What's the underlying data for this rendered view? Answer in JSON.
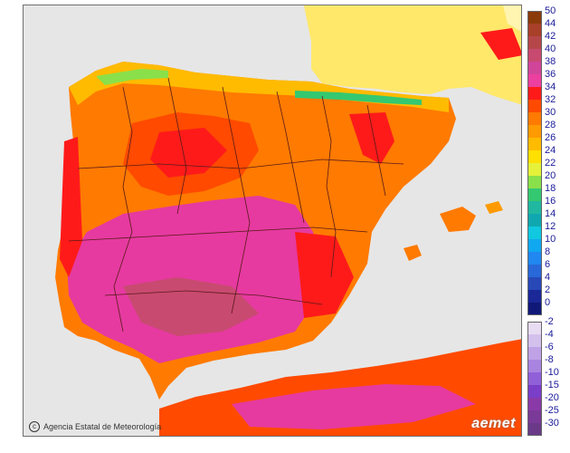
{
  "credit": {
    "text": "Agencia Estatal de Meteorología"
  },
  "brand": {
    "text": "aemet"
  },
  "legend_warm": [
    {
      "label": "50",
      "color": "#8b3a0a"
    },
    {
      "label": "44",
      "color": "#a8402a"
    },
    {
      "label": "42",
      "color": "#b5474a"
    },
    {
      "label": "40",
      "color": "#c84a70"
    },
    {
      "label": "38",
      "color": "#d0459a"
    },
    {
      "label": "36",
      "color": "#ec3fa0"
    },
    {
      "label": "34",
      "color": "#ff1a1a"
    },
    {
      "label": "32",
      "color": "#ff4a00"
    },
    {
      "label": "30",
      "color": "#ff7a00"
    },
    {
      "label": "28",
      "color": "#ff9a00"
    },
    {
      "label": "26",
      "color": "#ffbb00"
    },
    {
      "label": "24",
      "color": "#ffe000"
    },
    {
      "label": "22",
      "color": "#e6f23a"
    },
    {
      "label": "20",
      "color": "#8ae04a"
    },
    {
      "label": "18",
      "color": "#34c870"
    },
    {
      "label": "16",
      "color": "#20b8a0"
    },
    {
      "label": "14",
      "color": "#10a8b0"
    },
    {
      "label": "12",
      "color": "#10c8e0"
    },
    {
      "label": "10",
      "color": "#10a8f0"
    },
    {
      "label": "8",
      "color": "#2088f0"
    },
    {
      "label": "6",
      "color": "#2868d8"
    },
    {
      "label": "4",
      "color": "#2848b8"
    },
    {
      "label": "2",
      "color": "#1a2898"
    },
    {
      "label": "0",
      "color": "#101878"
    }
  ],
  "legend_cold": [
    {
      "label": "-2",
      "color": "#e8dcf2"
    },
    {
      "label": "-4",
      "color": "#d4c0ec"
    },
    {
      "label": "-6",
      "color": "#bfa2e6"
    },
    {
      "label": "-8",
      "color": "#a884e0"
    },
    {
      "label": "-10",
      "color": "#9060d8"
    },
    {
      "label": "-15",
      "color": "#7a3ec8"
    },
    {
      "label": "-20",
      "color": "#8a3aa8"
    },
    {
      "label": "-25",
      "color": "#7a3a98"
    },
    {
      "label": "-30",
      "color": "#6a3a88"
    }
  ],
  "map_colors": {
    "sea": "#e6e6e6",
    "france": "#ffe86a",
    "north_band": "#ff9a00",
    "central_north": "#ff4a00",
    "south_interior": "#e63aa0",
    "coast_red": "#ff1a1a",
    "borders": "#5a1a1a"
  }
}
